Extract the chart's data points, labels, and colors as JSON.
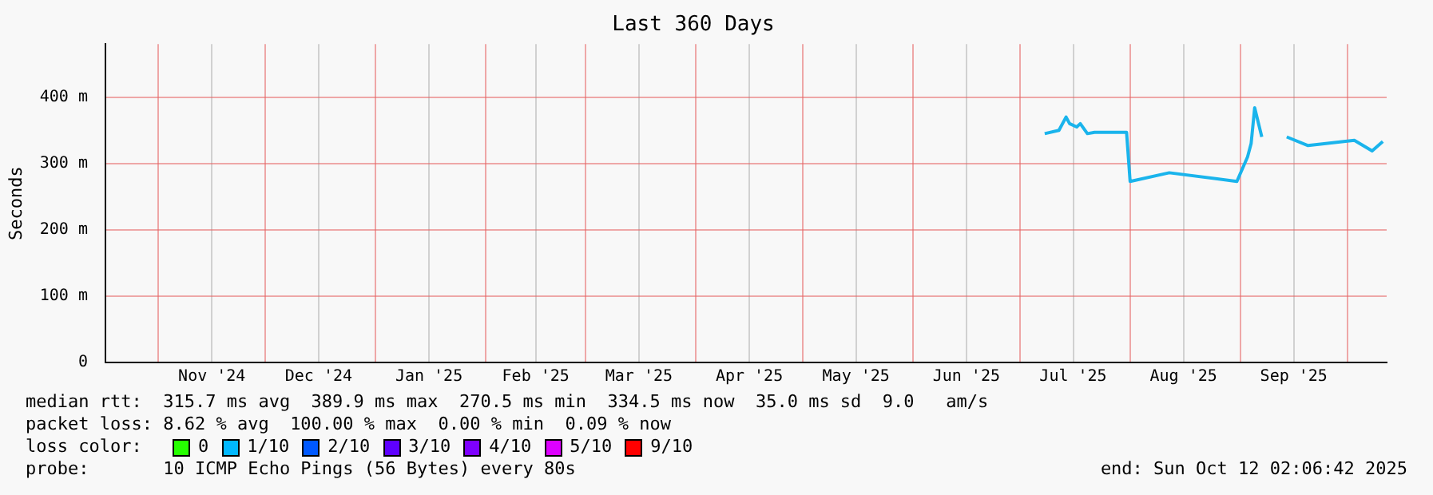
{
  "chart_data": {
    "type": "line",
    "title": "Last 360 Days",
    "ylabel": "Seconds",
    "x": [
      "2025-07-08",
      "2025-07-12",
      "2025-07-14",
      "2025-07-15",
      "2025-07-17",
      "2025-07-18",
      "2025-07-20",
      "2025-07-22",
      "2025-07-31",
      "2025-08-01",
      "2025-08-12",
      "2025-08-31",
      "2025-09-03",
      "2025-09-04",
      "2025-09-05",
      "2025-09-07",
      "2025-09-10",
      "2025-09-14",
      "2025-09-20",
      "2025-10-03",
      "2025-10-08",
      "2025-10-11"
    ],
    "series": [
      {
        "color": "#1ab4ec",
        "values": [
          345,
          350,
          370,
          360,
          355,
          360,
          345,
          347,
          347,
          273,
          286,
          273,
          310,
          330,
          384,
          340,
          null,
          340,
          327,
          335,
          319,
          333
        ]
      }
    ],
    "xlim": [
      "2024-10-17T02:06",
      "2025-10-12T02:06"
    ],
    "xticks": [
      {
        "value": "2024-11-01",
        "label": null
      },
      {
        "value": "2024-11-16",
        "label": "Nov '24"
      },
      {
        "value": "2024-12-01",
        "label": null
      },
      {
        "value": "2024-12-16",
        "label": "Dec '24"
      },
      {
        "value": "2025-01-01",
        "label": null
      },
      {
        "value": "2025-01-16",
        "label": "Jan '25"
      },
      {
        "value": "2025-02-01",
        "label": null
      },
      {
        "value": "2025-02-15",
        "label": "Feb '25"
      },
      {
        "value": "2025-03-01",
        "label": null
      },
      {
        "value": "2025-03-16",
        "label": "Mar '25"
      },
      {
        "value": "2025-04-01",
        "label": null
      },
      {
        "value": "2025-04-16",
        "label": "Apr '25"
      },
      {
        "value": "2025-05-01",
        "label": null
      },
      {
        "value": "2025-05-16",
        "label": "May '25"
      },
      {
        "value": "2025-06-01",
        "label": null
      },
      {
        "value": "2025-06-16",
        "label": "Jun '25"
      },
      {
        "value": "2025-07-01",
        "label": null
      },
      {
        "value": "2025-07-16",
        "label": "Jul '25"
      },
      {
        "value": "2025-08-01",
        "label": null
      },
      {
        "value": "2025-08-16",
        "label": "Aug '25"
      },
      {
        "value": "2025-09-01",
        "label": null
      },
      {
        "value": "2025-09-16",
        "label": "Sep '25"
      },
      {
        "value": "2025-10-01",
        "label": null
      }
    ],
    "ylim": [
      0,
      480
    ],
    "yticks": [
      {
        "value": 0,
        "label": "0"
      },
      {
        "value": 100,
        "label": "100 m"
      },
      {
        "value": 200,
        "label": "200 m"
      },
      {
        "value": 300,
        "label": "300 m"
      },
      {
        "value": 400,
        "label": "400 m"
      }
    ],
    "grid": true,
    "legend": false,
    "marker": "none",
    "line_style": "solid",
    "annotations": [
      "median rtt:  315.7 ms avg  389.9 ms max  270.5 ms min  334.5 ms now  35.0 ms sd  9.0   am/s",
      "packet loss: 8.62 % avg  100.00 % max  0.00 % min  0.09 % now",
      "loss color:",
      "0",
      "1/10",
      "2/10",
      "3/10",
      "4/10",
      "5/10",
      "9/10",
      "probe:       10 ICMP Echo Pings (56 Bytes) every 80s",
      "end: Sun Oct 12 02:06:42 2025"
    ]
  }
}
